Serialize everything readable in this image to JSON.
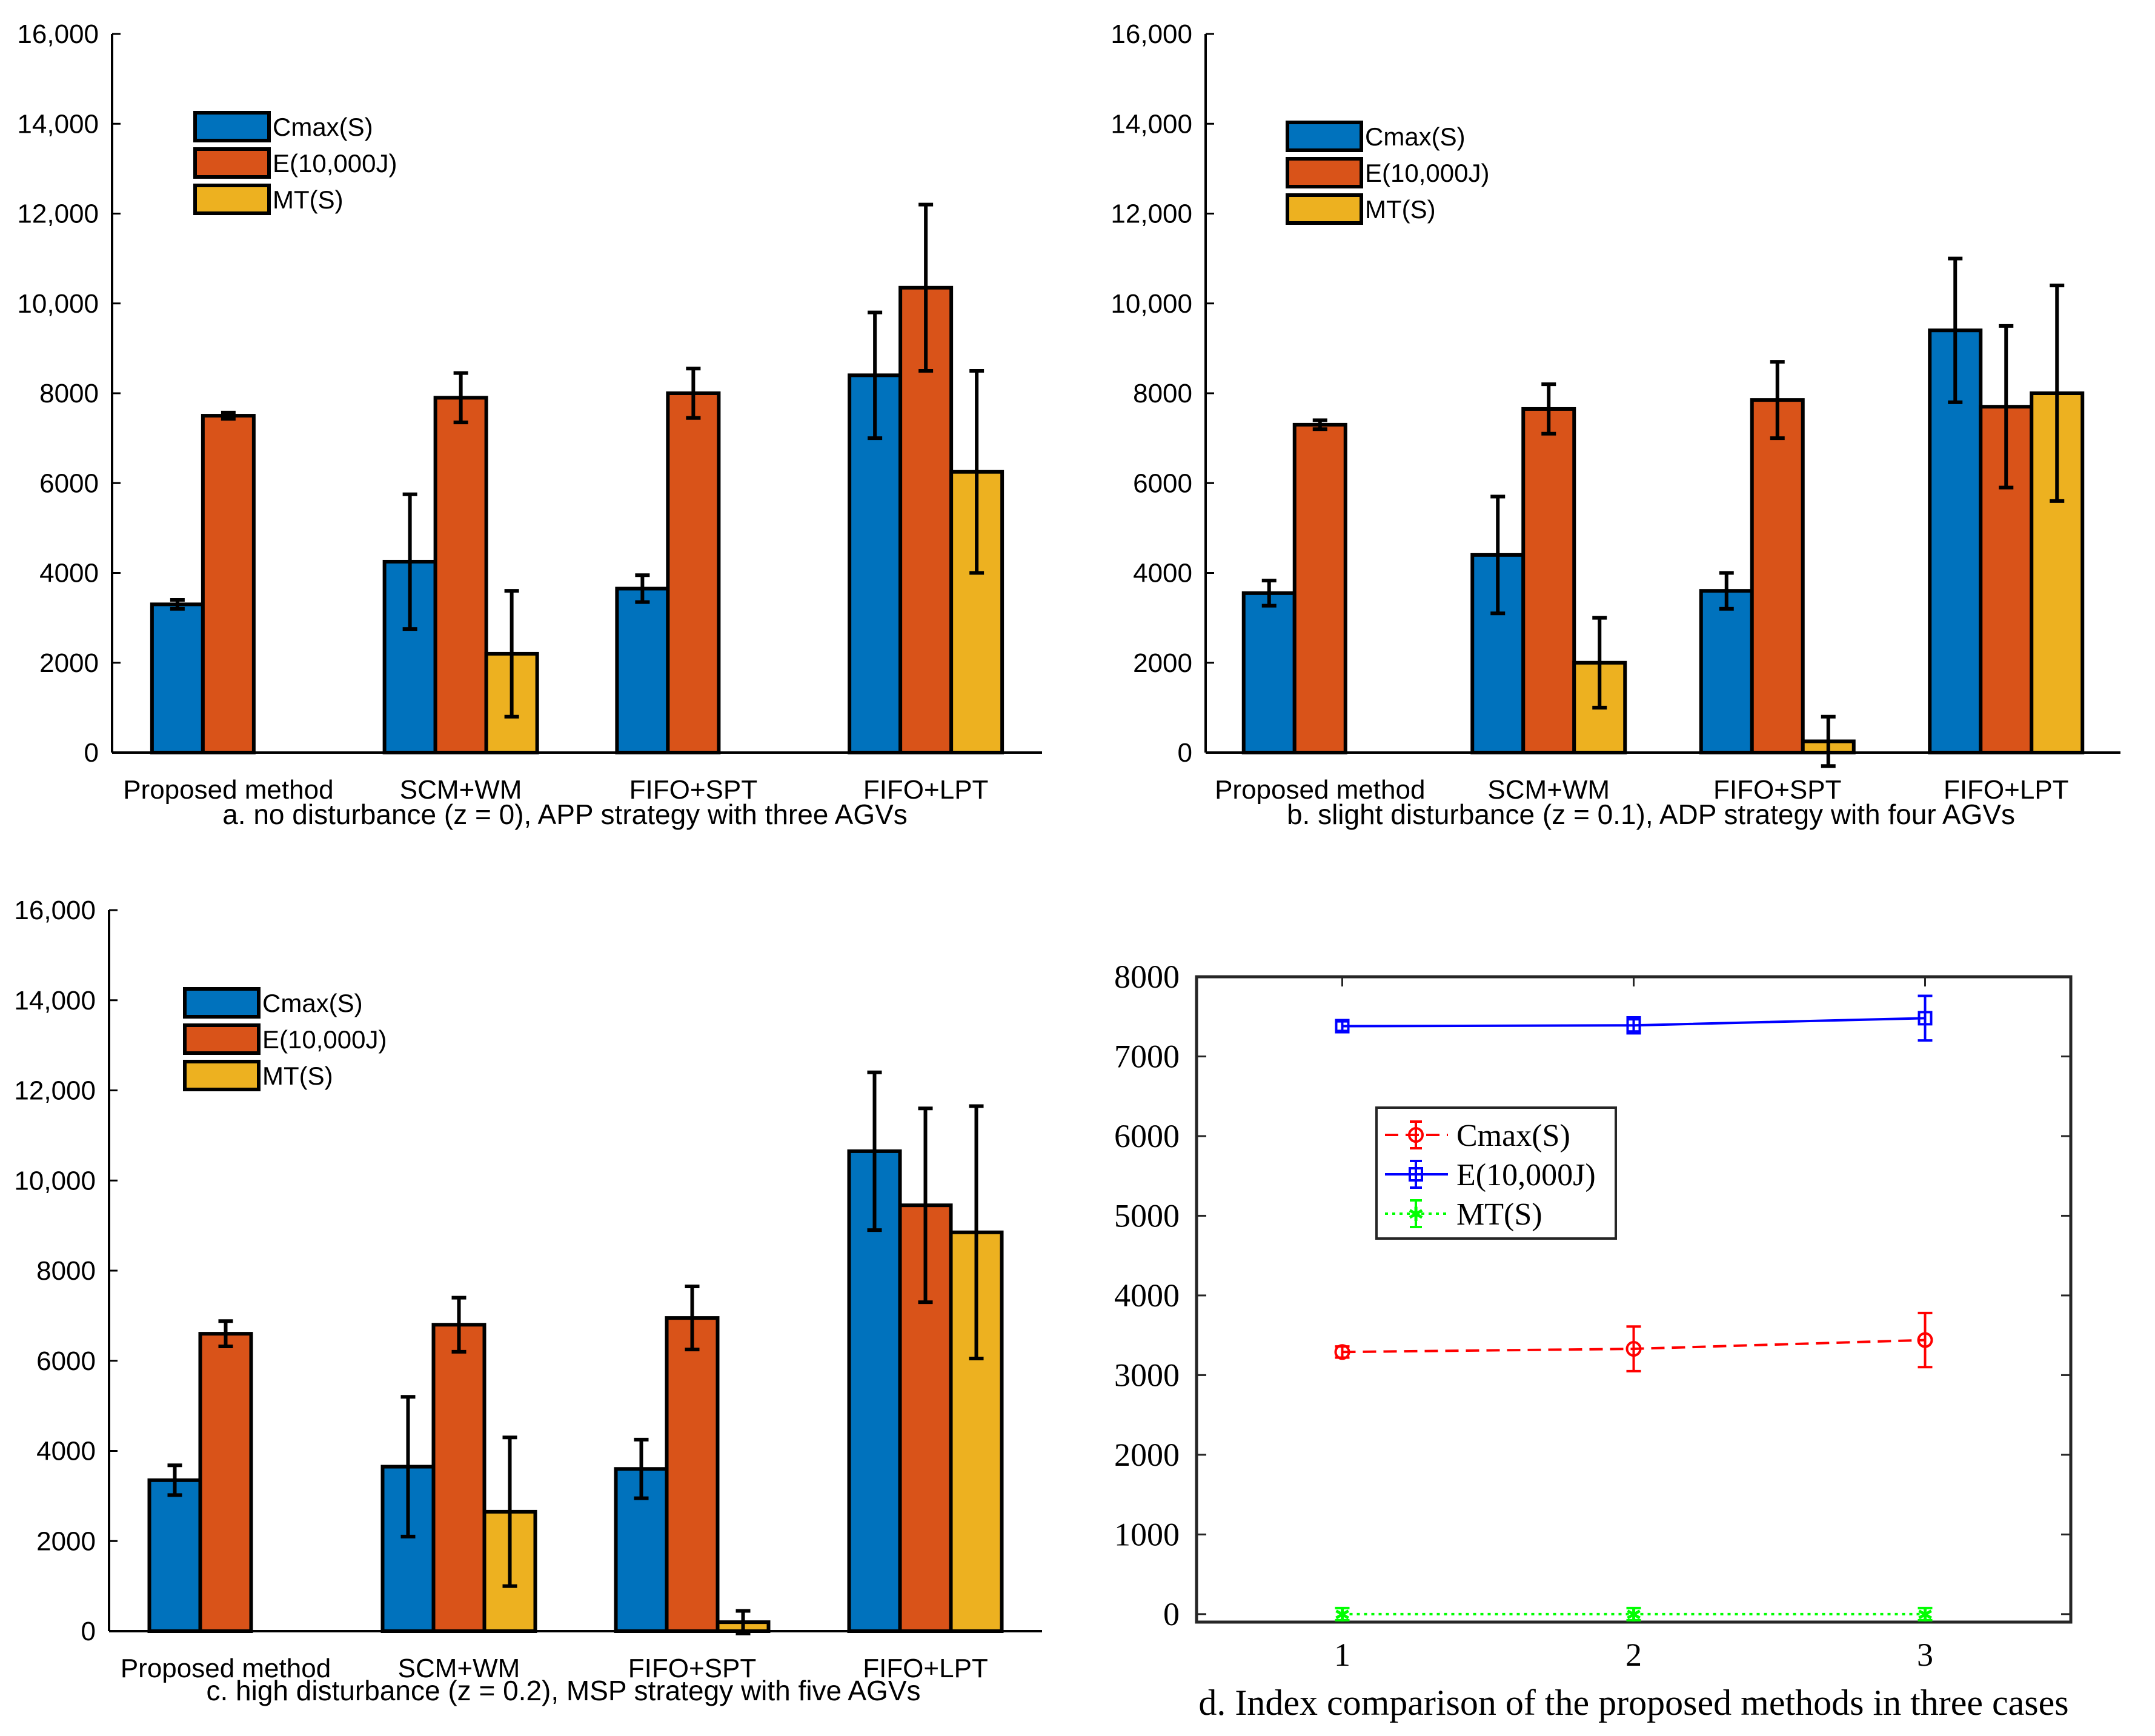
{
  "colors": {
    "cmax": "#0072BD",
    "energy": "#D95319",
    "mt": "#EDB120",
    "line_cmax": "#FF0000",
    "line_energy": "#0000FF",
    "line_mt": "#00FF00"
  },
  "chart_data": [
    {
      "type": "bar",
      "caption": "a. no disturbance (z = 0), APP strategy with three AGVs",
      "categories": [
        "Proposed method",
        "SCM+WM",
        "FIFO+SPT",
        "FIFO+LPT"
      ],
      "ylim": [
        0,
        16000
      ],
      "yticks": [
        0,
        2000,
        4000,
        6000,
        8000,
        10000,
        12000,
        14000,
        16000
      ],
      "ytick_labels": [
        "0",
        "2000",
        "4000",
        "6000",
        "8000",
        "10,000",
        "12,000",
        "14,000",
        "16,000"
      ],
      "series": [
        {
          "name": "Cmax(S)",
          "values": [
            3300,
            4250,
            3650,
            8400
          ],
          "err": [
            100,
            1500,
            300,
            1400
          ]
        },
        {
          "name": "E(10,000J)",
          "values": [
            7500,
            7900,
            8000,
            10350
          ],
          "err": [
            70,
            550,
            550,
            1850
          ]
        },
        {
          "name": "MT(S)",
          "values": [
            0,
            2200,
            0,
            6250
          ],
          "err": [
            0,
            1400,
            0,
            2250
          ]
        }
      ],
      "legend": "top-left"
    },
    {
      "type": "bar",
      "caption": "b. slight disturbance (z = 0.1), ADP strategy with four AGVs",
      "categories": [
        "Proposed method",
        "SCM+WM",
        "FIFO+SPT",
        "FIFO+LPT"
      ],
      "ylim": [
        0,
        16000
      ],
      "yticks": [
        0,
        2000,
        4000,
        6000,
        8000,
        10000,
        12000,
        14000,
        16000
      ],
      "ytick_labels": [
        "0",
        "2000",
        "4000",
        "6000",
        "8000",
        "10,000",
        "12,000",
        "14,000",
        "16,000"
      ],
      "series": [
        {
          "name": "Cmax(S)",
          "values": [
            3550,
            4400,
            3600,
            9400
          ],
          "err": [
            280,
            1300,
            400,
            1600
          ]
        },
        {
          "name": "E(10,000J)",
          "values": [
            7300,
            7650,
            7850,
            7700
          ],
          "err": [
            100,
            550,
            850,
            1800
          ]
        },
        {
          "name": "MT(S)",
          "values": [
            0,
            2000,
            250,
            8000
          ],
          "err": [
            0,
            1000,
            550,
            2400
          ]
        }
      ],
      "legend": "top-left"
    },
    {
      "type": "bar",
      "caption": "c. high disturbance (z = 0.2), MSP strategy with five AGVs",
      "categories": [
        "Proposed method",
        "SCM+WM",
        "FIFO+SPT",
        "FIFO+LPT"
      ],
      "ylim": [
        0,
        16000
      ],
      "yticks": [
        0,
        2000,
        4000,
        6000,
        8000,
        10000,
        12000,
        14000,
        16000
      ],
      "ytick_labels": [
        "0",
        "2000",
        "4000",
        "6000",
        "8000",
        "10,000",
        "12,000",
        "14,000",
        "16,000"
      ],
      "series": [
        {
          "name": "Cmax(S)",
          "values": [
            3350,
            3650,
            3600,
            10650
          ],
          "err": [
            330,
            1550,
            650,
            1750
          ]
        },
        {
          "name": "E(10,000J)",
          "values": [
            6600,
            6800,
            6950,
            9450
          ],
          "err": [
            280,
            600,
            700,
            2150
          ]
        },
        {
          "name": "MT(S)",
          "values": [
            0,
            2650,
            200,
            8850
          ],
          "err": [
            0,
            1650,
            250,
            2800
          ]
        }
      ],
      "legend": "top-left"
    },
    {
      "type": "line",
      "caption": "d. Index comparison of the proposed methods in three cases",
      "x": [
        1,
        2,
        3
      ],
      "xlim": [
        0.5,
        3.5
      ],
      "xticks": [
        1,
        2,
        3
      ],
      "ylim": [
        -100,
        8000
      ],
      "yticks": [
        0,
        1000,
        2000,
        3000,
        4000,
        5000,
        6000,
        7000,
        8000
      ],
      "series": [
        {
          "name": "Cmax(S)",
          "values": [
            3290,
            3330,
            3440
          ],
          "err": [
            70,
            280,
            340
          ],
          "style": "dashed",
          "marker": "circle"
        },
        {
          "name": "E(10,000J)",
          "values": [
            7380,
            7390,
            7480
          ],
          "err": [
            60,
            100,
            280
          ],
          "style": "solid",
          "marker": "square"
        },
        {
          "name": "MT(S)",
          "values": [
            0,
            0,
            0
          ],
          "err": [
            0,
            0,
            0
          ],
          "style": "dotted",
          "marker": "star"
        }
      ],
      "legend": "middle-left"
    }
  ]
}
